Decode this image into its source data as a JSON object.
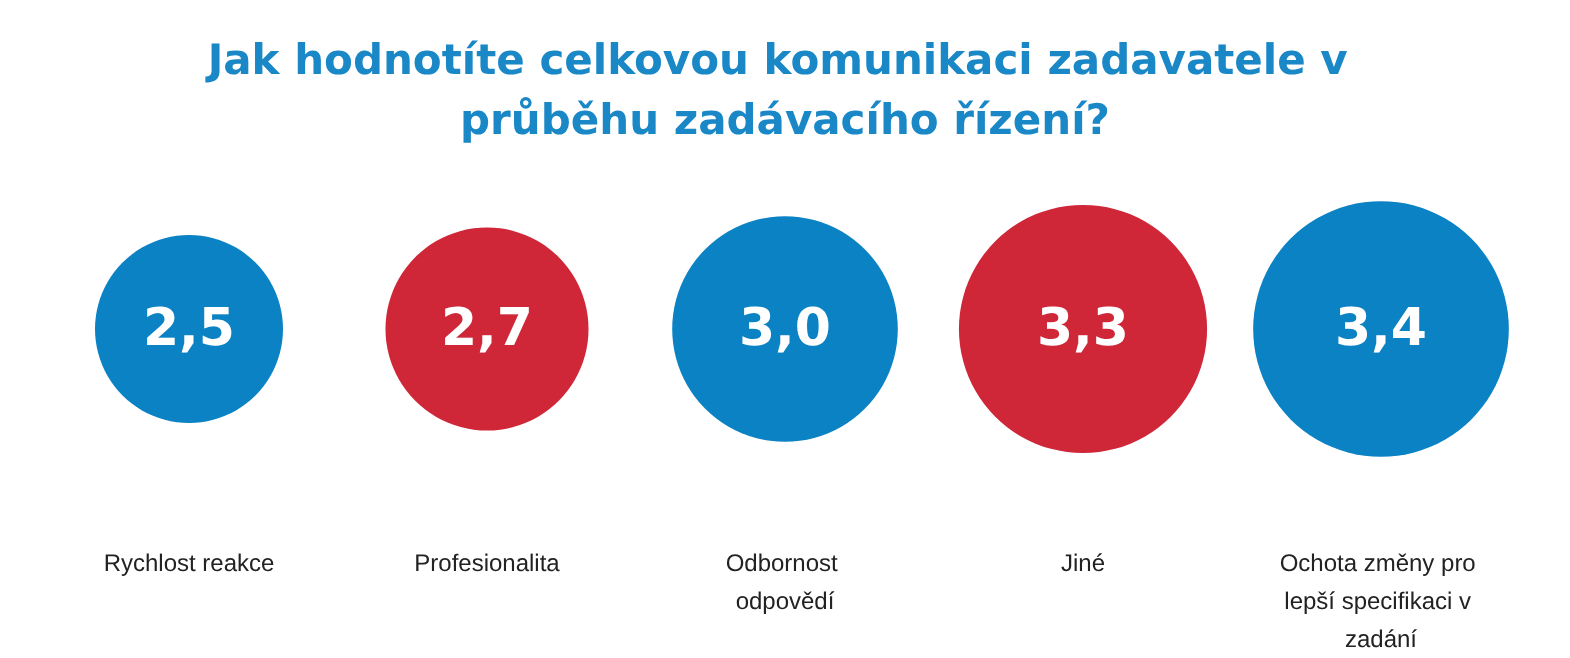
{
  "chart_data": {
    "type": "other",
    "title": "Jak hodnotíte celkovou komunikaci zadavatele v průběhu zadávacího řízení?",
    "categories": [
      "Rychlost reakce",
      "Profesionalita",
      "Odbornost odpovědí",
      "Jiné",
      "Ochota změny pro lepší specifikaci v zadání"
    ],
    "values": [
      2.5,
      2.7,
      3.0,
      3.3,
      3.4
    ],
    "value_labels": [
      "2,5",
      "2,7",
      "3,0",
      "3,3",
      "3,4"
    ],
    "colors": [
      "#0a82c3",
      "#cf2638",
      "#0a82c3",
      "#cf2638",
      "#0a82c3"
    ]
  }
}
